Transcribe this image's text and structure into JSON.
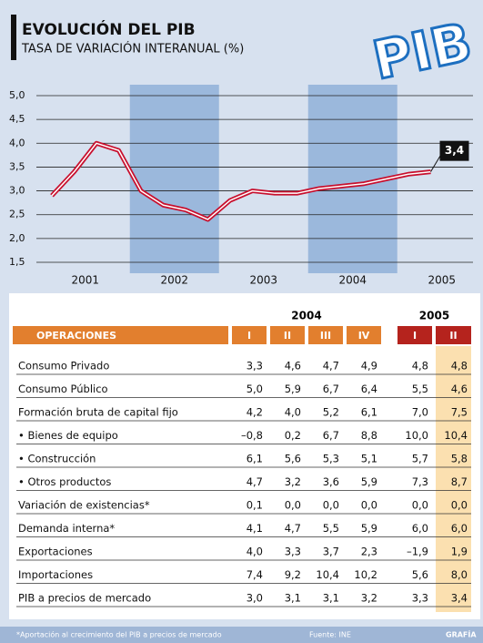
{
  "chart_data": {
    "type": "line",
    "title": "EVOLUCIÓN DEL PIB",
    "subtitle": "TASA DE VARIACIÓN INTERANUAL (%)",
    "logo": "PIB",
    "categories": [
      null,
      null,
      null,
      null,
      null,
      null,
      null,
      null,
      null,
      null,
      null,
      null,
      null,
      null,
      null,
      null,
      null,
      null
    ],
    "year_labels": [
      "2001",
      "2002",
      "2003",
      "2004",
      "2005"
    ],
    "values": [
      2.9,
      3.4,
      4.0,
      3.85,
      3.0,
      2.7,
      2.6,
      2.4,
      2.8,
      3.0,
      2.95,
      2.95,
      3.05,
      3.1,
      3.15,
      3.25,
      3.35,
      3.4
    ],
    "value_labels": [
      null,
      null,
      null,
      null,
      null,
      null,
      null,
      null,
      null,
      null,
      null,
      null,
      null,
      null,
      null,
      null,
      null,
      "3,4"
    ],
    "color": "#c8102e",
    "ylim": [
      1.5,
      5.0
    ],
    "yticks": [
      {
        "value": 1.5,
        "label": "1,5"
      },
      {
        "value": 2.0,
        "label": "2,0"
      },
      {
        "value": 2.5,
        "label": "2,5"
      },
      {
        "value": 3.0,
        "label": "3,0"
      },
      {
        "value": 3.5,
        "label": "3,5"
      },
      {
        "value": 4.0,
        "label": "4,0"
      },
      {
        "value": 4.5,
        "label": "4,5"
      },
      {
        "value": 5.0,
        "label": "5,0"
      }
    ],
    "grid": true
  },
  "table": {
    "years": [
      "2004",
      "2005"
    ],
    "header": [
      "OPERACIONES",
      "I",
      "II",
      "III",
      "IV",
      "I",
      "II"
    ],
    "rows": [
      [
        "Consumo Privado",
        "3,3",
        "4,6",
        "4,7",
        "4,9",
        "4,8",
        "4,8"
      ],
      [
        "Consumo Público",
        "5,0",
        "5,9",
        "6,7",
        "6,4",
        "5,5",
        "4,6"
      ],
      [
        "Formación bruta de capital fijo",
        "4,2",
        "4,0",
        "5,2",
        "6,1",
        "7,0",
        "7,5"
      ],
      [
        "• Bienes de equipo",
        "–0,8",
        "0,2",
        "6,7",
        "8,8",
        "10,0",
        "10,4"
      ],
      [
        "• Construcción",
        "6,1",
        "5,6",
        "5,3",
        "5,1",
        "5,7",
        "5,8"
      ],
      [
        "• Otros productos",
        "4,7",
        "3,2",
        "3,6",
        "5,9",
        "7,3",
        "8,7"
      ],
      [
        "Variación de existencias*",
        "0,1",
        "0,0",
        "0,0",
        "0,0",
        "0,0",
        "0,0"
      ],
      [
        "Demanda interna*",
        "4,1",
        "4,7",
        "5,5",
        "5,9",
        "6,0",
        "6,0"
      ],
      [
        "Exportaciones",
        "4,0",
        "3,3",
        "3,7",
        "2,3",
        "–1,9",
        "1,9"
      ],
      [
        "Importaciones",
        "7,4",
        "9,2",
        "10,4",
        "10,2",
        "5,6",
        "8,0"
      ],
      [
        "PIB a precios de mercado",
        "3,0",
        "3,1",
        "3,1",
        "3,2",
        "3,3",
        "3,4"
      ]
    ]
  },
  "footer": {
    "note": "*Aportación al crecimiento del PIB a precios de mercado",
    "source": "Fuente: INE",
    "credit": "GRAFÍA"
  }
}
